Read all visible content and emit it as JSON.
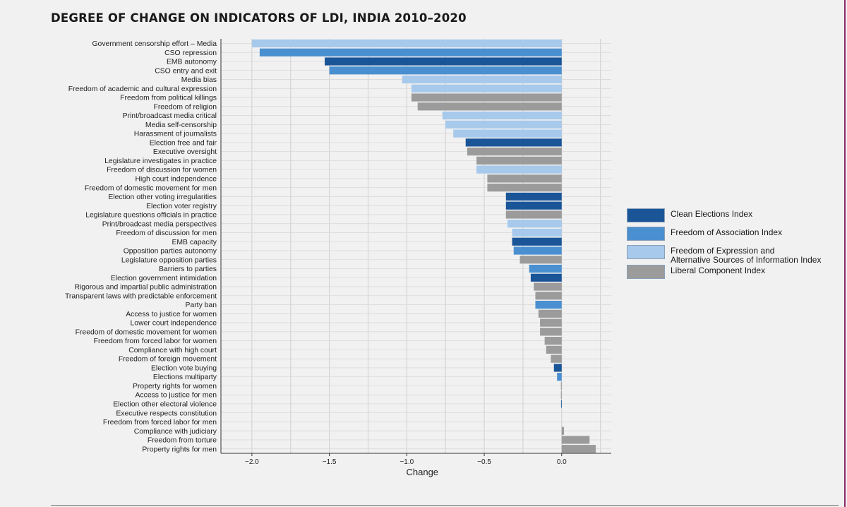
{
  "chart_data": {
    "type": "bar",
    "orientation": "horizontal",
    "title": "DEGREE OF CHANGE ON INDICATORS OF LDI, INDIA 2010–2020",
    "xlabel": "Change",
    "ylabel": "",
    "xlim": [
      -2.2,
      0.32
    ],
    "xticks": [
      -2.0,
      -1.5,
      -1.0,
      -0.5,
      0.0
    ],
    "xtick_labels": [
      "−2.0",
      "−1.5",
      "−1.0",
      "−0.5",
      "0.0"
    ],
    "grid": true,
    "legend_position": "right",
    "legend": [
      {
        "key": "clean",
        "label": "Clean Elections Index"
      },
      {
        "key": "assoc",
        "label": "Freedom of Association Index"
      },
      {
        "key": "expr",
        "label": "Freedom of Expression and",
        "label_line2": "Alternative Sources of Information Index"
      },
      {
        "key": "lib",
        "label": "Liberal Component Index"
      }
    ],
    "colors": {
      "clean": "#1a5598",
      "assoc": "#4a8fd0",
      "expr": "#a7c9eb",
      "lib": "#9b9b9b"
    },
    "bars": [
      {
        "label": "Government censorship effort – Media",
        "value": -2.0,
        "group": "expr"
      },
      {
        "label": "CSO repression",
        "value": -1.95,
        "group": "assoc"
      },
      {
        "label": "EMB autonomy",
        "value": -1.53,
        "group": "clean"
      },
      {
        "label": "CSO entry and exit",
        "value": -1.5,
        "group": "assoc"
      },
      {
        "label": "Media bias",
        "value": -1.03,
        "group": "expr"
      },
      {
        "label": "Freedom of academic and cultural expression",
        "value": -0.97,
        "group": "expr"
      },
      {
        "label": "Freedom from political killings",
        "value": -0.97,
        "group": "lib"
      },
      {
        "label": "Freedom of religion",
        "value": -0.93,
        "group": "lib"
      },
      {
        "label": "Print/broadcast media critical",
        "value": -0.77,
        "group": "expr"
      },
      {
        "label": "Media self-censorship",
        "value": -0.75,
        "group": "expr"
      },
      {
        "label": "Harassment of journalists",
        "value": -0.7,
        "group": "expr"
      },
      {
        "label": "Election free and fair",
        "value": -0.62,
        "group": "clean"
      },
      {
        "label": "Executive oversight",
        "value": -0.61,
        "group": "lib"
      },
      {
        "label": "Legislature investigates in practice",
        "value": -0.55,
        "group": "lib"
      },
      {
        "label": "Freedom of discussion for women",
        "value": -0.55,
        "group": "expr"
      },
      {
        "label": "High court independence",
        "value": -0.48,
        "group": "lib"
      },
      {
        "label": "Freedom of domestic movement for men",
        "value": -0.48,
        "group": "lib"
      },
      {
        "label": "Election other voting irregularities",
        "value": -0.36,
        "group": "clean"
      },
      {
        "label": "Election voter registry",
        "value": -0.36,
        "group": "clean"
      },
      {
        "label": "Legislature questions officials in practice",
        "value": -0.36,
        "group": "lib"
      },
      {
        "label": "Print/broadcast media perspectives",
        "value": -0.35,
        "group": "expr"
      },
      {
        "label": "Freedom of discussion for men",
        "value": -0.32,
        "group": "expr"
      },
      {
        "label": "EMB capacity",
        "value": -0.32,
        "group": "clean"
      },
      {
        "label": "Opposition parties autonomy",
        "value": -0.31,
        "group": "assoc"
      },
      {
        "label": "Legislature opposition parties",
        "value": -0.27,
        "group": "lib"
      },
      {
        "label": "Barriers to parties",
        "value": -0.21,
        "group": "assoc"
      },
      {
        "label": "Election government intimidation",
        "value": -0.2,
        "group": "clean"
      },
      {
        "label": "Rigorous and impartial public administration",
        "value": -0.18,
        "group": "lib"
      },
      {
        "label": "Transparent laws with predictable enforcement",
        "value": -0.17,
        "group": "lib"
      },
      {
        "label": "Party ban",
        "value": -0.17,
        "group": "assoc"
      },
      {
        "label": "Access to justice for women",
        "value": -0.15,
        "group": "lib"
      },
      {
        "label": "Lower court independence",
        "value": -0.14,
        "group": "lib"
      },
      {
        "label": "Freedom of domestic movement for women",
        "value": -0.14,
        "group": "lib"
      },
      {
        "label": "Freedom from forced labor for women",
        "value": -0.11,
        "group": "lib"
      },
      {
        "label": "Compliance with high court",
        "value": -0.1,
        "group": "lib"
      },
      {
        "label": "Freedom of foreign movement",
        "value": -0.07,
        "group": "lib"
      },
      {
        "label": "Election vote buying",
        "value": -0.05,
        "group": "clean"
      },
      {
        "label": "Elections multiparty",
        "value": -0.03,
        "group": "assoc"
      },
      {
        "label": "Property rights for women",
        "value": -0.005,
        "group": "lib"
      },
      {
        "label": "Access to justice for men",
        "value": -0.005,
        "group": "lib"
      },
      {
        "label": "Election other electoral violence",
        "value": -0.004,
        "group": "clean"
      },
      {
        "label": "Executive respects constitution",
        "value": 0.0,
        "group": "lib"
      },
      {
        "label": "Freedom from forced labor for men",
        "value": 0.0,
        "group": "lib"
      },
      {
        "label": "Compliance with judiciary",
        "value": 0.015,
        "group": "lib"
      },
      {
        "label": "Freedom from torture",
        "value": 0.18,
        "group": "lib"
      },
      {
        "label": "Property rights for men",
        "value": 0.22,
        "group": "lib"
      }
    ]
  }
}
